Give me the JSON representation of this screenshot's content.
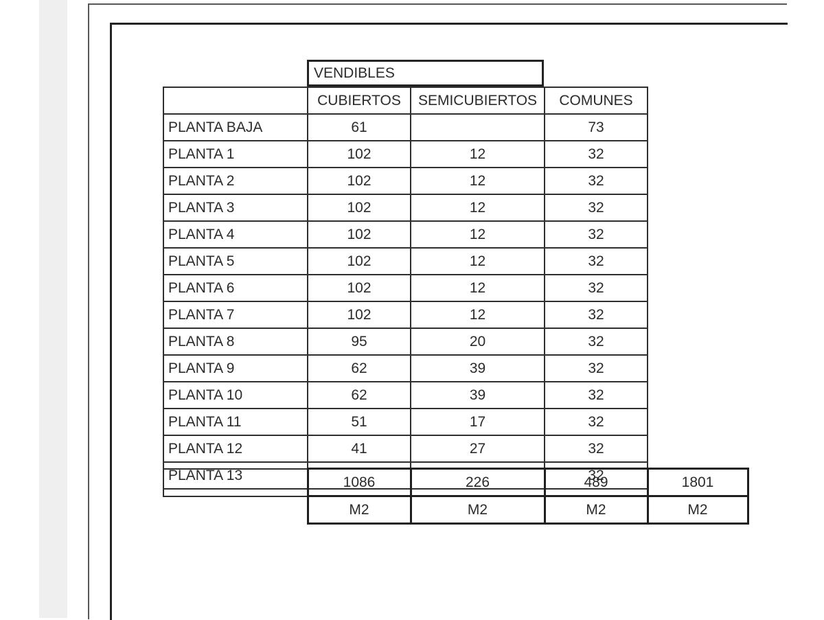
{
  "page": {
    "background": "#ffffff",
    "gray_strip_color": "#efefef",
    "outer_frame_color": "#585858",
    "inner_frame_color": "#232323",
    "table_border_color": "#2e2e2e"
  },
  "table": {
    "vendibles_label": "VENDIBLES",
    "columns": [
      "CUBIERTOS",
      "SEMICUBIERTOS",
      "COMUNES"
    ],
    "rows": [
      {
        "label": "PLANTA BAJA",
        "cubiertos": "61",
        "semicubiertos": "",
        "comunes": "73"
      },
      {
        "label": "PLANTA 1",
        "cubiertos": "102",
        "semicubiertos": "12",
        "comunes": "32"
      },
      {
        "label": "PLANTA 2",
        "cubiertos": "102",
        "semicubiertos": "12",
        "comunes": "32"
      },
      {
        "label": "PLANTA 3",
        "cubiertos": "102",
        "semicubiertos": "12",
        "comunes": "32"
      },
      {
        "label": "PLANTA 4",
        "cubiertos": "102",
        "semicubiertos": "12",
        "comunes": "32"
      },
      {
        "label": "PLANTA 5",
        "cubiertos": "102",
        "semicubiertos": "12",
        "comunes": "32"
      },
      {
        "label": "PLANTA 6",
        "cubiertos": "102",
        "semicubiertos": "12",
        "comunes": "32"
      },
      {
        "label": "PLANTA 7",
        "cubiertos": "102",
        "semicubiertos": "12",
        "comunes": "32"
      },
      {
        "label": "PLANTA 8",
        "cubiertos": "95",
        "semicubiertos": "20",
        "comunes": "32"
      },
      {
        "label": "PLANTA 9",
        "cubiertos": "62",
        "semicubiertos": "39",
        "comunes": "32"
      },
      {
        "label": "PLANTA 10",
        "cubiertos": "62",
        "semicubiertos": "39",
        "comunes": "32"
      },
      {
        "label": "PLANTA 11",
        "cubiertos": "51",
        "semicubiertos": "17",
        "comunes": "32"
      },
      {
        "label": "PLANTA 12",
        "cubiertos": "41",
        "semicubiertos": "27",
        "comunes": "32"
      },
      {
        "label": "PLANTA 13",
        "cubiertos": "",
        "semicubiertos": "",
        "comunes": "32"
      }
    ],
    "totals": {
      "cubiertos": "1086",
      "semicubiertos": "226",
      "comunes": "489",
      "grand_total": "1801"
    },
    "units_row": [
      "M2",
      "M2",
      "M2",
      "M2"
    ]
  }
}
